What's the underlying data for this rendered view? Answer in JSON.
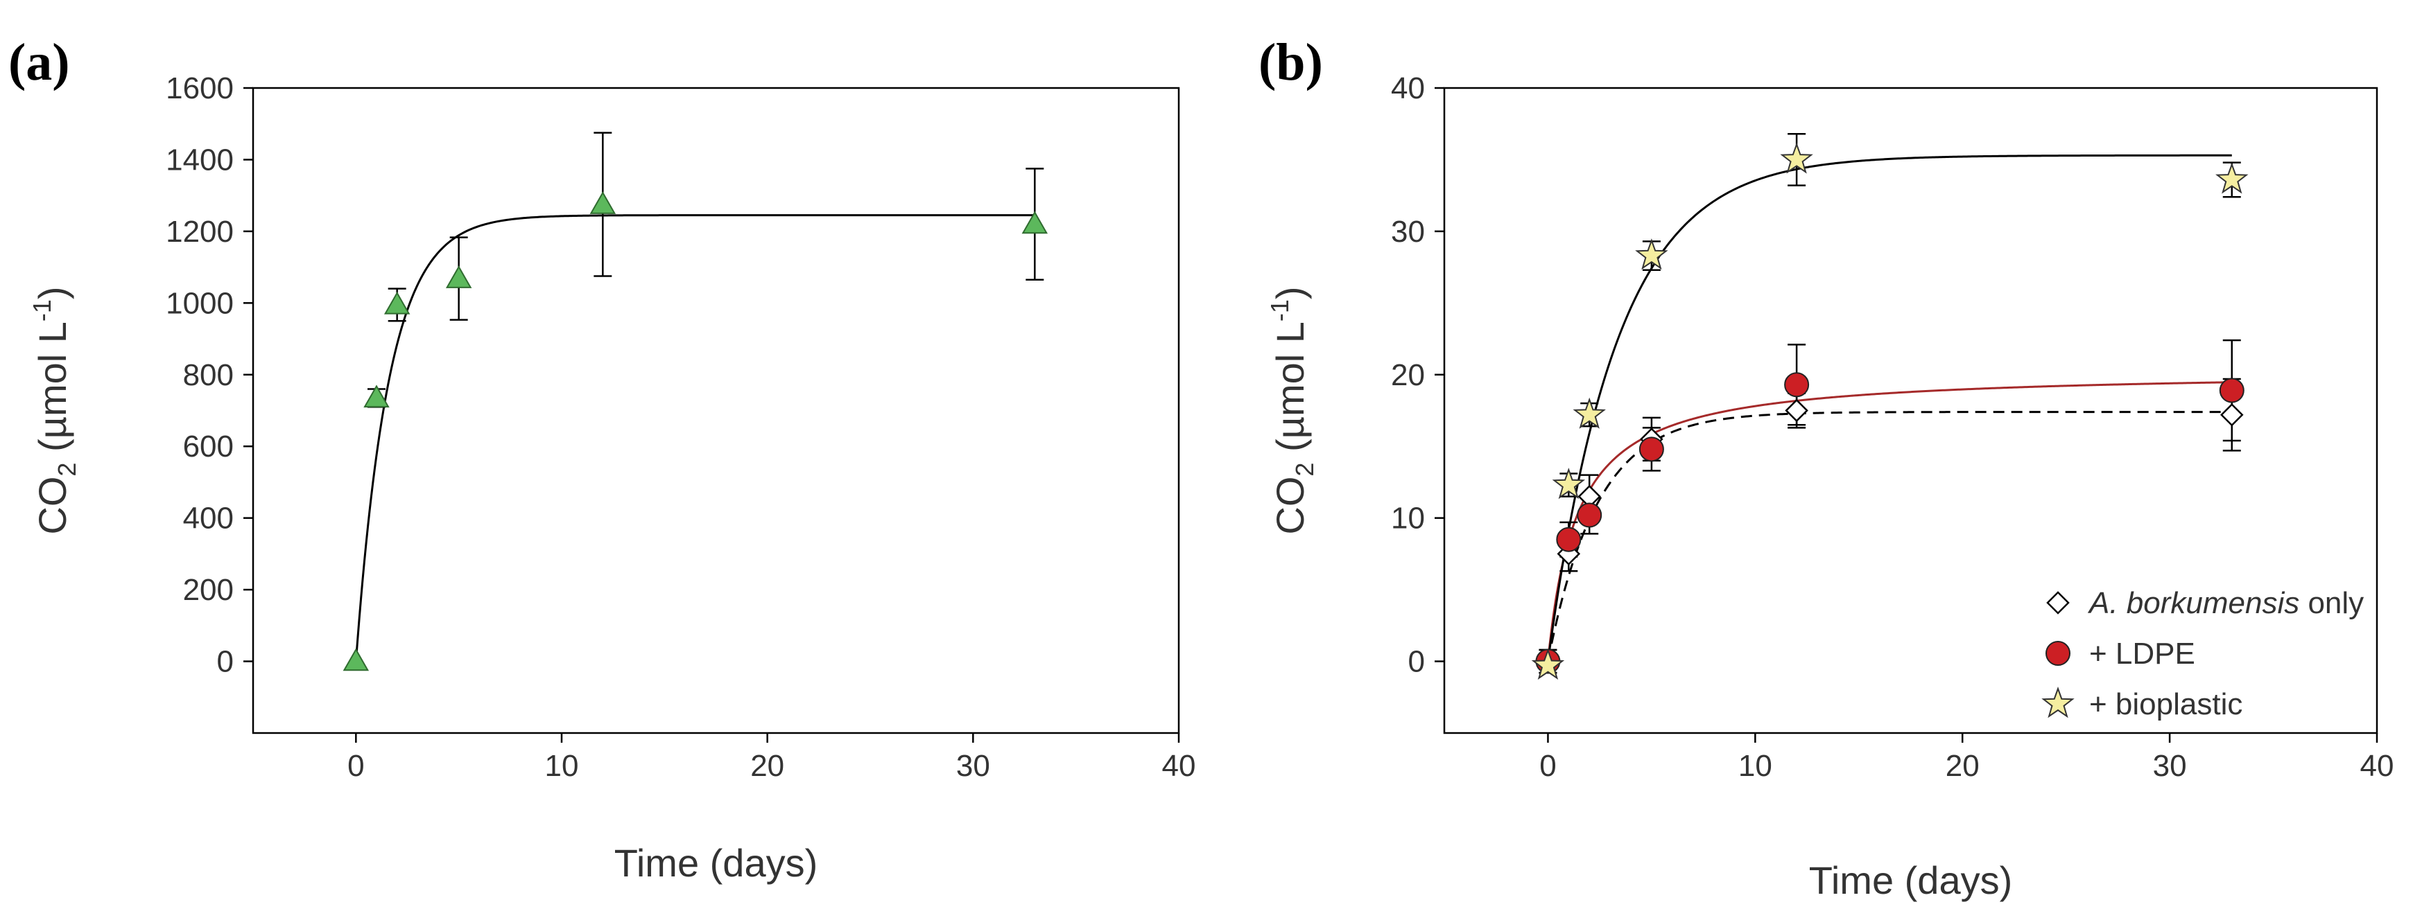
{
  "chart_data": [
    {
      "panel_label": "(a)",
      "type": "scatter",
      "xlabel": "Time (days)",
      "ylabel": {
        "prefix": "CO",
        "sub": "2",
        "mid": " (µmol L",
        "sup": "-1",
        "suffix": ")"
      },
      "xlim": [
        -5,
        40
      ],
      "ylim": [
        -200,
        1600
      ],
      "xticks": [
        0,
        10,
        20,
        30,
        40
      ],
      "yticks": [
        0,
        200,
        400,
        600,
        800,
        1000,
        1200,
        1400,
        1600
      ],
      "grid": false,
      "series": [
        {
          "name": "CO2",
          "marker": "triangle",
          "color": "#5cb85c",
          "x": [
            0,
            1,
            2,
            5,
            12,
            33
          ],
          "y": [
            0,
            735,
            995,
            1068,
            1275,
            1220
          ],
          "err": [
            0,
            25,
            45,
            115,
            200,
            155
          ],
          "fit": {
            "kind": "saturation",
            "a": 1245,
            "k": 0.0,
            "b": 0.62,
            "style": "solid",
            "color": "#000000"
          }
        }
      ]
    },
    {
      "panel_label": "(b)",
      "type": "scatter",
      "xlabel": "Time (days)",
      "ylabel": {
        "prefix": "CO",
        "sub": "2",
        "mid": " (µmol L",
        "sup": "-1",
        "suffix": ")"
      },
      "xlim": [
        -5,
        40
      ],
      "ylim": [
        -5,
        40
      ],
      "xticks": [
        0,
        10,
        20,
        30,
        40
      ],
      "yticks": [
        0,
        10,
        20,
        30,
        40
      ],
      "grid": false,
      "legend_position": "bottom-right",
      "series": [
        {
          "name": "A. borkumensis only",
          "name_italic": "A. borkumensis",
          "name_rest": " only",
          "marker": "diamond",
          "color": "#ffffff",
          "x": [
            0,
            1,
            2,
            5,
            12,
            33
          ],
          "y": [
            0,
            7.5,
            11.5,
            15.5,
            17.5,
            17.2
          ],
          "err": [
            0.8,
            1.2,
            1.5,
            1.5,
            1.2,
            2.5
          ],
          "fit": {
            "kind": "saturation",
            "a": 17.4,
            "b": 0.42,
            "style": "dashed",
            "color": "#000000"
          }
        },
        {
          "name": "+ LDPE",
          "marker": "circle",
          "color": "#cc1f24",
          "x": [
            0,
            1,
            2,
            5,
            12,
            33
          ],
          "y": [
            0,
            8.5,
            10.2,
            14.8,
            19.3,
            18.9
          ],
          "err": [
            0.8,
            1.2,
            1.3,
            1.5,
            2.8,
            3.5
          ],
          "fit": {
            "kind": "hyperbolic",
            "a": 20.3,
            "K": 1.4,
            "style": "solid",
            "color": "#a52a2a"
          }
        },
        {
          "name": "+ bioplastic",
          "marker": "star",
          "color": "#f5eea0",
          "x": [
            0,
            1,
            2,
            5,
            12,
            33
          ],
          "y": [
            -0.3,
            12.3,
            17.2,
            28.3,
            35.0,
            33.6
          ],
          "err": [
            0.5,
            0.8,
            0.8,
            1.0,
            1.8,
            1.2
          ],
          "fit": {
            "kind": "saturation2",
            "a": 35.3,
            "b": 0.3,
            "style": "solid",
            "color": "#000000"
          }
        }
      ]
    }
  ]
}
